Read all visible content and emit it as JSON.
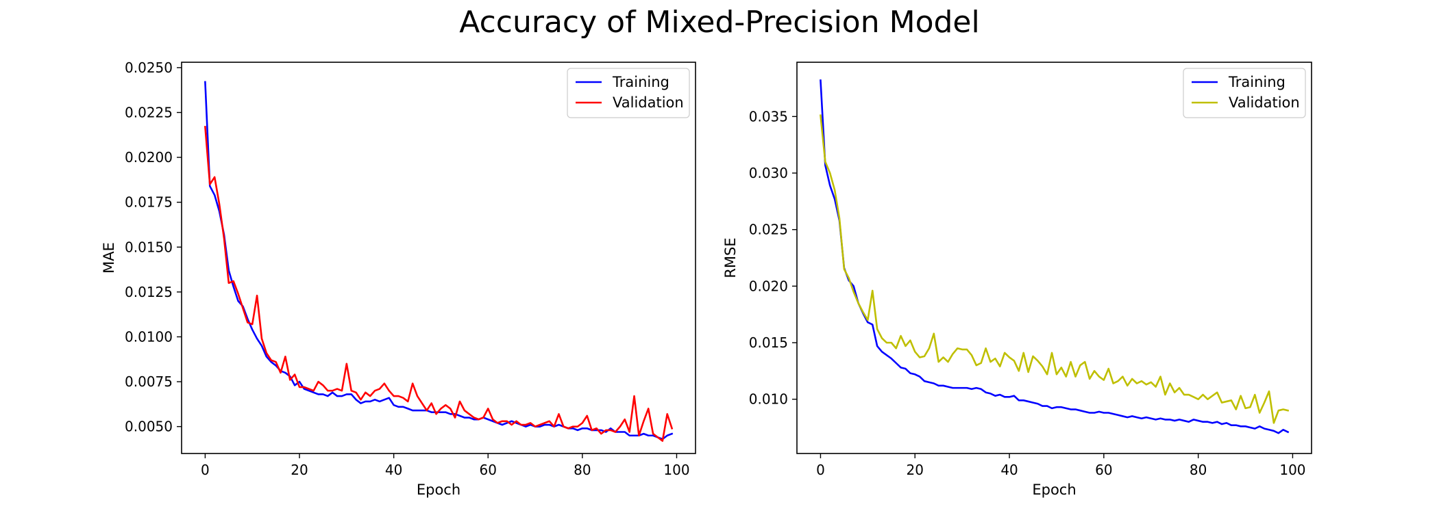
{
  "figure": {
    "title": "Accuracy of Mixed-Precision Model"
  },
  "chart_data": [
    {
      "type": "line",
      "xlabel": "Epoch",
      "ylabel": "MAE",
      "xlim": [
        -5,
        104
      ],
      "ylim": [
        0.0035,
        0.0253
      ],
      "xticks": [
        0,
        20,
        40,
        60,
        80,
        100
      ],
      "yticks": [
        0.005,
        0.0075,
        0.01,
        0.0125,
        0.015,
        0.0175,
        0.02,
        0.0225,
        0.025
      ],
      "ytick_labels": [
        "0.0050",
        "0.0075",
        "0.0100",
        "0.0125",
        "0.0150",
        "0.0175",
        "0.0200",
        "0.0225",
        "0.0250"
      ],
      "legend_position": "top-right",
      "grid": false,
      "series": [
        {
          "name": "Training",
          "color": "#0000ff",
          "values": [
            0.0242,
            0.0184,
            0.0179,
            0.017,
            0.0157,
            0.0137,
            0.0128,
            0.012,
            0.0117,
            0.011,
            0.0104,
            0.0099,
            0.0095,
            0.0089,
            0.0086,
            0.0084,
            0.0081,
            0.008,
            0.0078,
            0.0073,
            0.0075,
            0.0071,
            0.007,
            0.0069,
            0.0068,
            0.0068,
            0.0067,
            0.0069,
            0.0067,
            0.0067,
            0.0068,
            0.0068,
            0.0065,
            0.0063,
            0.0064,
            0.0064,
            0.0065,
            0.0064,
            0.0065,
            0.0066,
            0.0062,
            0.0061,
            0.0061,
            0.006,
            0.0059,
            0.0059,
            0.0059,
            0.0059,
            0.0058,
            0.0058,
            0.0058,
            0.0058,
            0.0057,
            0.0057,
            0.0056,
            0.0055,
            0.0055,
            0.0054,
            0.0054,
            0.0055,
            0.0054,
            0.0053,
            0.0052,
            0.0051,
            0.0052,
            0.0053,
            0.0052,
            0.0051,
            0.005,
            0.0051,
            0.005,
            0.005,
            0.0051,
            0.0051,
            0.005,
            0.0051,
            0.005,
            0.0049,
            0.0049,
            0.0048,
            0.0049,
            0.0049,
            0.0048,
            0.0048,
            0.0048,
            0.0047,
            0.0049,
            0.0047,
            0.0047,
            0.0047,
            0.0045,
            0.0045,
            0.0045,
            0.0046,
            0.0045,
            0.0045,
            0.0044,
            0.0043,
            0.0045,
            0.0046
          ]
        },
        {
          "name": "Validation",
          "color": "#ff0000",
          "values": [
            0.0217,
            0.0185,
            0.0189,
            0.0174,
            0.0155,
            0.013,
            0.0131,
            0.0124,
            0.0116,
            0.0108,
            0.0107,
            0.0123,
            0.0099,
            0.0091,
            0.0087,
            0.0086,
            0.008,
            0.0089,
            0.0076,
            0.0079,
            0.0072,
            0.0072,
            0.0071,
            0.007,
            0.0075,
            0.0073,
            0.007,
            0.007,
            0.0071,
            0.007,
            0.0085,
            0.007,
            0.0069,
            0.0065,
            0.0069,
            0.0067,
            0.007,
            0.0071,
            0.0074,
            0.007,
            0.0067,
            0.0067,
            0.0066,
            0.0064,
            0.0074,
            0.0067,
            0.0063,
            0.0059,
            0.0063,
            0.0057,
            0.006,
            0.0062,
            0.006,
            0.0055,
            0.0064,
            0.0059,
            0.0057,
            0.0055,
            0.0054,
            0.0055,
            0.006,
            0.0054,
            0.0052,
            0.0053,
            0.0053,
            0.0051,
            0.0053,
            0.0051,
            0.0051,
            0.0052,
            0.005,
            0.0051,
            0.0052,
            0.0053,
            0.005,
            0.0057,
            0.005,
            0.0049,
            0.005,
            0.005,
            0.0052,
            0.0056,
            0.0048,
            0.0049,
            0.0046,
            0.0048,
            0.0048,
            0.0047,
            0.005,
            0.0054,
            0.0047,
            0.0067,
            0.0045,
            0.0053,
            0.006,
            0.0046,
            0.0044,
            0.0042,
            0.0057,
            0.0049
          ]
        }
      ]
    },
    {
      "type": "line",
      "xlabel": "Epoch",
      "ylabel": "RMSE",
      "xlim": [
        -5,
        104
      ],
      "ylim": [
        0.0052,
        0.0398
      ],
      "xticks": [
        0,
        20,
        40,
        60,
        80,
        100
      ],
      "yticks": [
        0.01,
        0.015,
        0.02,
        0.025,
        0.03,
        0.035
      ],
      "ytick_labels": [
        "0.010",
        "0.015",
        "0.020",
        "0.025",
        "0.030",
        "0.035"
      ],
      "legend_position": "top-right",
      "grid": false,
      "series": [
        {
          "name": "Training",
          "color": "#0000ff",
          "values": [
            0.0382,
            0.0307,
            0.0289,
            0.0277,
            0.0258,
            0.0216,
            0.0205,
            0.02,
            0.0185,
            0.0176,
            0.0168,
            0.0166,
            0.0147,
            0.0142,
            0.0139,
            0.0136,
            0.0132,
            0.0128,
            0.0127,
            0.0123,
            0.0122,
            0.012,
            0.0116,
            0.0115,
            0.0114,
            0.0112,
            0.0112,
            0.0111,
            0.011,
            0.011,
            0.011,
            0.011,
            0.0109,
            0.011,
            0.0109,
            0.0106,
            0.0105,
            0.0103,
            0.0104,
            0.0102,
            0.0102,
            0.0103,
            0.0099,
            0.0099,
            0.0098,
            0.0097,
            0.0096,
            0.0094,
            0.0094,
            0.0092,
            0.0093,
            0.0093,
            0.0092,
            0.0091,
            0.0091,
            0.009,
            0.0089,
            0.0088,
            0.0088,
            0.0089,
            0.0088,
            0.0088,
            0.0087,
            0.0086,
            0.0085,
            0.0084,
            0.0085,
            0.0084,
            0.0083,
            0.0084,
            0.0083,
            0.0082,
            0.0083,
            0.0082,
            0.0082,
            0.0081,
            0.0082,
            0.0081,
            0.008,
            0.0082,
            0.0081,
            0.008,
            0.008,
            0.0079,
            0.008,
            0.0078,
            0.0079,
            0.0077,
            0.0077,
            0.0076,
            0.0076,
            0.0075,
            0.0074,
            0.0076,
            0.0074,
            0.0073,
            0.0072,
            0.007,
            0.0073,
            0.0071
          ]
        },
        {
          "name": "Validation",
          "color": "#bfbf00",
          "values": [
            0.0351,
            0.031,
            0.03,
            0.0285,
            0.026,
            0.0215,
            0.0207,
            0.0195,
            0.0185,
            0.0177,
            0.017,
            0.0196,
            0.0162,
            0.0154,
            0.015,
            0.015,
            0.0145,
            0.0156,
            0.0147,
            0.0152,
            0.0142,
            0.0137,
            0.0138,
            0.0145,
            0.0158,
            0.0133,
            0.0137,
            0.0133,
            0.014,
            0.0145,
            0.0144,
            0.0144,
            0.0139,
            0.013,
            0.0132,
            0.0145,
            0.0133,
            0.0136,
            0.0129,
            0.0141,
            0.0137,
            0.0134,
            0.0125,
            0.0141,
            0.0124,
            0.0138,
            0.0134,
            0.0129,
            0.0122,
            0.0141,
            0.0122,
            0.0128,
            0.012,
            0.0133,
            0.012,
            0.013,
            0.0133,
            0.0118,
            0.0125,
            0.012,
            0.0117,
            0.0127,
            0.0114,
            0.0116,
            0.012,
            0.0112,
            0.0118,
            0.0114,
            0.0116,
            0.0113,
            0.0115,
            0.0111,
            0.012,
            0.0104,
            0.0114,
            0.0106,
            0.011,
            0.0104,
            0.0104,
            0.0102,
            0.01,
            0.0104,
            0.01,
            0.0103,
            0.0106,
            0.0097,
            0.0098,
            0.0099,
            0.0091,
            0.0103,
            0.0092,
            0.0093,
            0.0104,
            0.0088,
            0.0097,
            0.0107,
            0.0079,
            0.009,
            0.0091,
            0.009
          ]
        }
      ]
    }
  ]
}
